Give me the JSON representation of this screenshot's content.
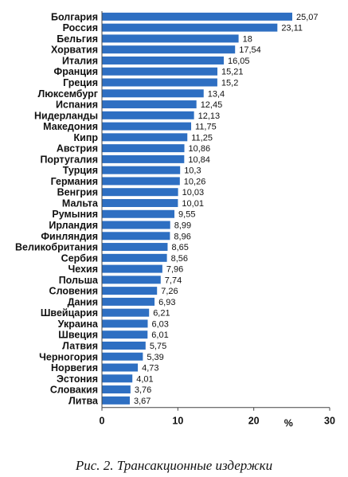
{
  "caption": "Рис. 2. Трансакционные издержки",
  "chart_data": {
    "type": "bar",
    "orientation": "horizontal",
    "categories": [
      "Болгария",
      "Россия",
      "Бельгия",
      "Хорватия",
      "Италия",
      "Франция",
      "Греция",
      "Люксембург",
      "Испания",
      "Нидерланды",
      "Македония",
      "Кипр",
      "Австрия",
      "Португалия",
      "Турция",
      "Германия",
      "Венгрия",
      "Мальта",
      "Румыния",
      "Ирландия",
      "Финляндия",
      "Великобритания",
      "Сербия",
      "Чехия",
      "Польша",
      "Словения",
      "Дания",
      "Швейцария",
      "Украина",
      "Швеция",
      "Латвия",
      "Черногория",
      "Норвегия",
      "Эстония",
      "Словакия",
      "Литва"
    ],
    "values": [
      25.07,
      23.11,
      18,
      17.54,
      16.05,
      15.21,
      15.2,
      13.4,
      12.45,
      12.13,
      11.75,
      11.25,
      10.86,
      10.84,
      10.3,
      10.26,
      10.03,
      10.01,
      9.55,
      8.99,
      8.96,
      8.65,
      8.56,
      7.96,
      7.74,
      7.26,
      6.93,
      6.21,
      6.03,
      6.01,
      5.75,
      5.39,
      4.73,
      4.01,
      3.76,
      3.67
    ],
    "value_labels": [
      "25,07",
      "23,11",
      "18",
      "17,54",
      "16,05",
      "15,21",
      "15,2",
      "13,4",
      "12,45",
      "12,13",
      "11,75",
      "11,25",
      "10,86",
      "10,84",
      "10,3",
      "10,26",
      "10,03",
      "10,01",
      "9,55",
      "8,99",
      "8,96",
      "8,65",
      "8,56",
      "7,96",
      "7,74",
      "7,26",
      "6,93",
      "6,21",
      "6,03",
      "6,01",
      "5,75",
      "5,39",
      "4,73",
      "4,01",
      "3,76",
      "3,67"
    ],
    "xlim": [
      0,
      30
    ],
    "xticks": [
      0,
      10,
      20,
      30
    ],
    "xtick_labels": [
      "0",
      "10",
      "20",
      "30"
    ],
    "unit": "%",
    "bar_color": "#2e6fc2",
    "grid": false,
    "legend": "none"
  }
}
